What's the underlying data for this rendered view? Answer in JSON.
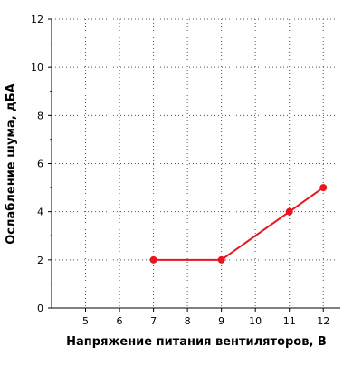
{
  "chart_data": {
    "type": "line",
    "title": "",
    "xlabel": "Напряжение питания вентиляторов, В",
    "ylabel": "Ослабление шума, дБА",
    "xlim": [
      4,
      12.5
    ],
    "ylim": [
      0,
      12
    ],
    "x_ticks": [
      5,
      6,
      7,
      8,
      9,
      10,
      11,
      12
    ],
    "x_tick_labels": [
      "5",
      "6",
      "7",
      "8",
      "9",
      "10",
      "11",
      "12"
    ],
    "y_ticks": [
      0,
      2,
      4,
      6,
      8,
      10,
      12
    ],
    "y_tick_labels": [
      "0",
      "2",
      "4",
      "6",
      "8",
      "10",
      "12"
    ],
    "y_minor_ticks": [
      1,
      3,
      5,
      7,
      9,
      11
    ],
    "grid": true,
    "grid_style": "dotted",
    "legend": "none",
    "series": [
      {
        "color": "#e8141e",
        "marker": "circle",
        "x": [
          7,
          9,
          11,
          12
        ],
        "y": [
          2,
          2,
          4,
          5
        ]
      }
    ]
  }
}
